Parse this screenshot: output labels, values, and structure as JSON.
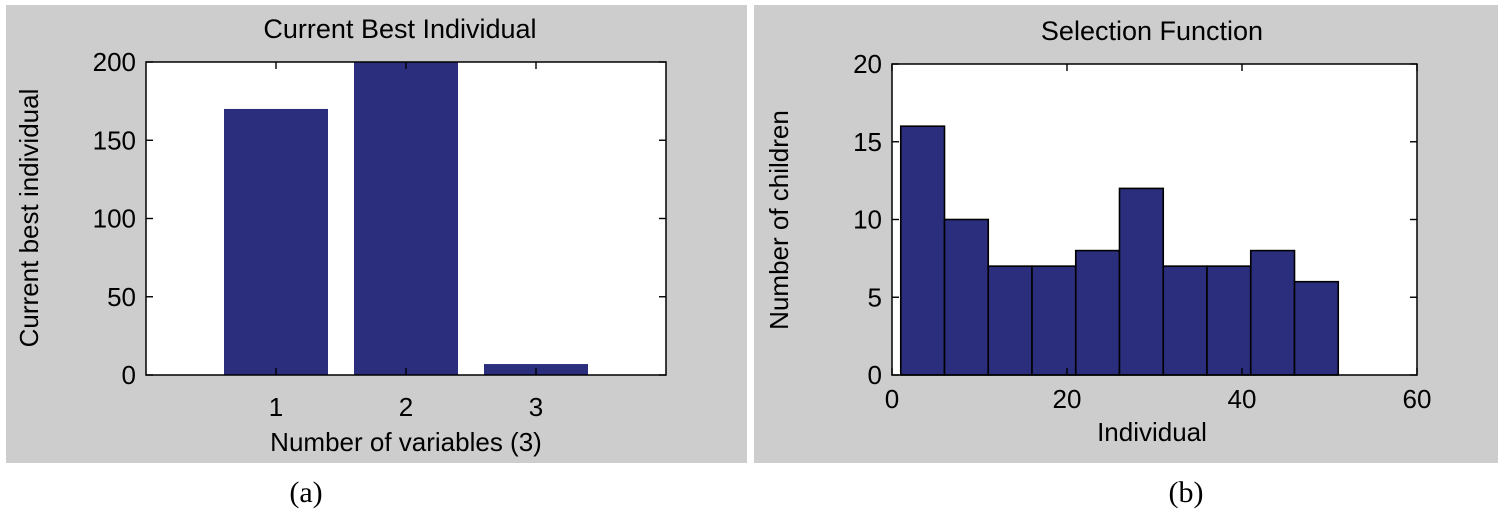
{
  "charts": [
    {
      "caption": "(a)",
      "bar_color": "#2b2e7d",
      "chart_data": {
        "type": "bar",
        "title": "Current Best Individual",
        "xlabel": "Number of variables (3)",
        "ylabel": "Current best individual",
        "categories": [
          "1",
          "2",
          "3"
        ],
        "values": [
          170,
          200,
          7
        ],
        "xlim": [
          0,
          4
        ],
        "ylim": [
          0,
          200
        ],
        "yticks": [
          "0",
          "50",
          "100",
          "150",
          "200"
        ],
        "grid": false
      }
    },
    {
      "caption": "(b)",
      "bar_color": "#2b2e7d",
      "chart_data": {
        "type": "bar",
        "title": "Selection Function",
        "xlabel": "Individual",
        "ylabel": "Number of children",
        "bin_edges": [
          1,
          6,
          11,
          16,
          21,
          26,
          31,
          36,
          41,
          46,
          51
        ],
        "values": [
          16,
          10,
          7,
          7,
          8,
          12,
          7,
          7,
          8,
          6
        ],
        "xlim": [
          0,
          60
        ],
        "ylim": [
          0,
          20
        ],
        "xticks": [
          "0",
          "20",
          "40",
          "60"
        ],
        "yticks": [
          "0",
          "5",
          "10",
          "15",
          "20"
        ],
        "grid": false
      }
    }
  ]
}
